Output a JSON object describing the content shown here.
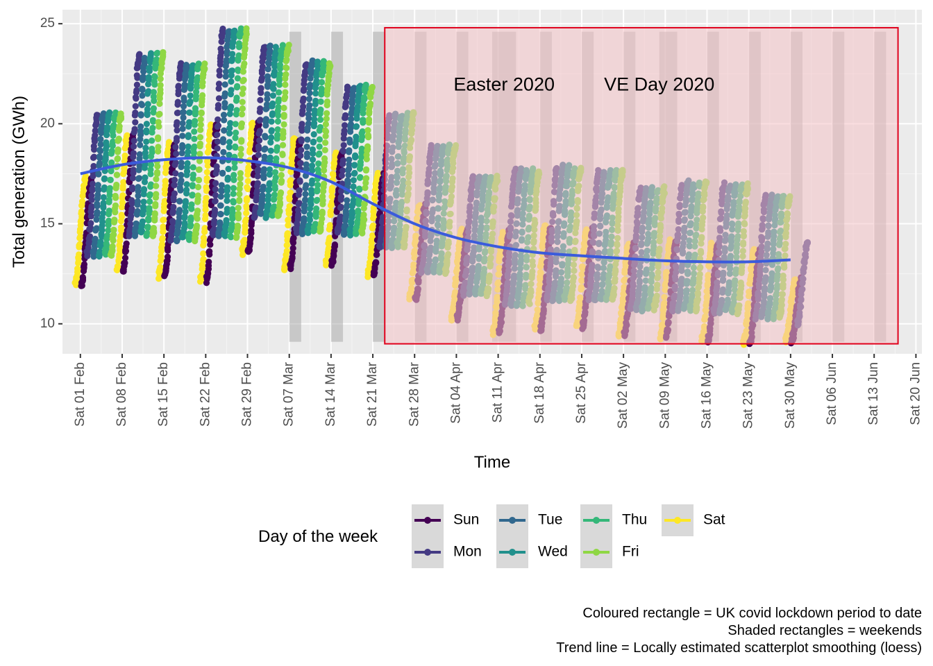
{
  "chart_data": {
    "type": "scatter",
    "x_label": "Time",
    "y_label": "Total generation (GWh)",
    "x_ticks": [
      "Sat 01 Feb",
      "Sat 08 Feb",
      "Sat 15 Feb",
      "Sat 22 Feb",
      "Sat 29 Feb",
      "Sat 07 Mar",
      "Sat 14 Mar",
      "Sat 21 Mar",
      "Sat 28 Mar",
      "Sat 04 Apr",
      "Sat 11 Apr",
      "Sat 18 Apr",
      "Sat 25 Apr",
      "Sat 02 May",
      "Sat 09 May",
      "Sat 16 May",
      "Sat 23 May",
      "Sat 30 May",
      "Sat 06 Jun",
      "Sat 13 Jun",
      "Sat 20 Jun"
    ],
    "x_range": [
      "2020-01-29",
      "2020-06-21"
    ],
    "y_ticks": [
      10,
      15,
      20,
      25
    ],
    "y_range": [
      8.5,
      25.7
    ],
    "grid": true,
    "legend": {
      "title": "Day of the week",
      "position": "bottom",
      "entries": [
        {
          "label": "Sun",
          "color": "#440154"
        },
        {
          "label": "Mon",
          "color": "#443A83"
        },
        {
          "label": "Tue",
          "color": "#31688E"
        },
        {
          "label": "Wed",
          "color": "#21908C"
        },
        {
          "label": "Thu",
          "color": "#35B779"
        },
        {
          "label": "Fri",
          "color": "#8FD744"
        },
        {
          "label": "Sat",
          "color": "#FDE725"
        }
      ]
    },
    "lockdown_rectangle": {
      "start": "2020-03-23",
      "end": "2020-06-17",
      "ymin": 9.0,
      "ymax": 24.8,
      "fill": "#F4C2C6",
      "border": "#E0001B"
    },
    "weekend_rectangles": {
      "start_dates": [
        "2020-03-07",
        "2020-03-14",
        "2020-03-21",
        "2020-03-28",
        "2020-04-04",
        "2020-04-10",
        "2020-04-18",
        "2020-04-25",
        "2020-05-02",
        "2020-05-08",
        "2020-05-16",
        "2020-05-23",
        "2020-05-30",
        "2020-06-06",
        "2020-06-13"
      ],
      "length_days": [
        2,
        2,
        2,
        2,
        2,
        4,
        2,
        2,
        2,
        3,
        2,
        2,
        2,
        2,
        2
      ],
      "ymin": 9.1,
      "ymax": 24.6
    },
    "annotations": [
      {
        "text": "Easter 2020",
        "x": "2020-04-12",
        "y": 21.9
      },
      {
        "text": "VE Day 2020",
        "x": "2020-05-08",
        "y": 21.9
      }
    ],
    "weekly_ranges": [
      {
        "week_start": "2020-02-01",
        "min": 12.0,
        "max": 20.4
      },
      {
        "week_start": "2020-02-08",
        "min": 12.6,
        "max": 23.4
      },
      {
        "week_start": "2020-02-15",
        "min": 12.4,
        "max": 22.9
      },
      {
        "week_start": "2020-02-22",
        "min": 12.2,
        "max": 24.6
      },
      {
        "week_start": "2020-02-29",
        "min": 13.6,
        "max": 23.8
      },
      {
        "week_start": "2020-03-07",
        "min": 12.8,
        "max": 23.0
      },
      {
        "week_start": "2020-03-14",
        "min": 13.0,
        "max": 21.8
      },
      {
        "week_start": "2020-03-21",
        "min": 12.5,
        "max": 20.4
      },
      {
        "week_start": "2020-03-28",
        "min": 11.3,
        "max": 18.8
      },
      {
        "week_start": "2020-04-04",
        "min": 10.3,
        "max": 17.3
      },
      {
        "week_start": "2020-04-11",
        "min": 9.6,
        "max": 17.6
      },
      {
        "week_start": "2020-04-18",
        "min": 9.8,
        "max": 17.8
      },
      {
        "week_start": "2020-04-25",
        "min": 9.9,
        "max": 17.6
      },
      {
        "week_start": "2020-05-02",
        "min": 9.5,
        "max": 16.7
      },
      {
        "week_start": "2020-05-09",
        "min": 9.4,
        "max": 17.0
      },
      {
        "week_start": "2020-05-16",
        "min": 9.2,
        "max": 16.9
      },
      {
        "week_start": "2020-05-23",
        "min": 9.1,
        "max": 16.3
      },
      {
        "week_start": "2020-05-30",
        "min": 9.2,
        "max": 14.0
      }
    ],
    "trend_line": {
      "method": "loess",
      "color": "#3B5BDB",
      "points": [
        {
          "x": "2020-02-01",
          "y": 17.5
        },
        {
          "x": "2020-02-08",
          "y": 17.95
        },
        {
          "x": "2020-02-15",
          "y": 18.2
        },
        {
          "x": "2020-02-22",
          "y": 18.3
        },
        {
          "x": "2020-02-29",
          "y": 18.15
        },
        {
          "x": "2020-03-07",
          "y": 17.8
        },
        {
          "x": "2020-03-14",
          "y": 17.1
        },
        {
          "x": "2020-03-21",
          "y": 16.0
        },
        {
          "x": "2020-03-28",
          "y": 15.0
        },
        {
          "x": "2020-04-04",
          "y": 14.3
        },
        {
          "x": "2020-04-11",
          "y": 13.85
        },
        {
          "x": "2020-04-18",
          "y": 13.55
        },
        {
          "x": "2020-04-25",
          "y": 13.4
        },
        {
          "x": "2020-05-02",
          "y": 13.27
        },
        {
          "x": "2020-05-09",
          "y": 13.15
        },
        {
          "x": "2020-05-16",
          "y": 13.1
        },
        {
          "x": "2020-05-23",
          "y": 13.1
        },
        {
          "x": "2020-05-30",
          "y": 13.2
        }
      ]
    },
    "caption": [
      "Coloured rectangle = UK covid lockdown period to date",
      "Shaded rectangles = weekends",
      "Trend line = Locally estimated scatterplot smoothing (loess)"
    ]
  }
}
